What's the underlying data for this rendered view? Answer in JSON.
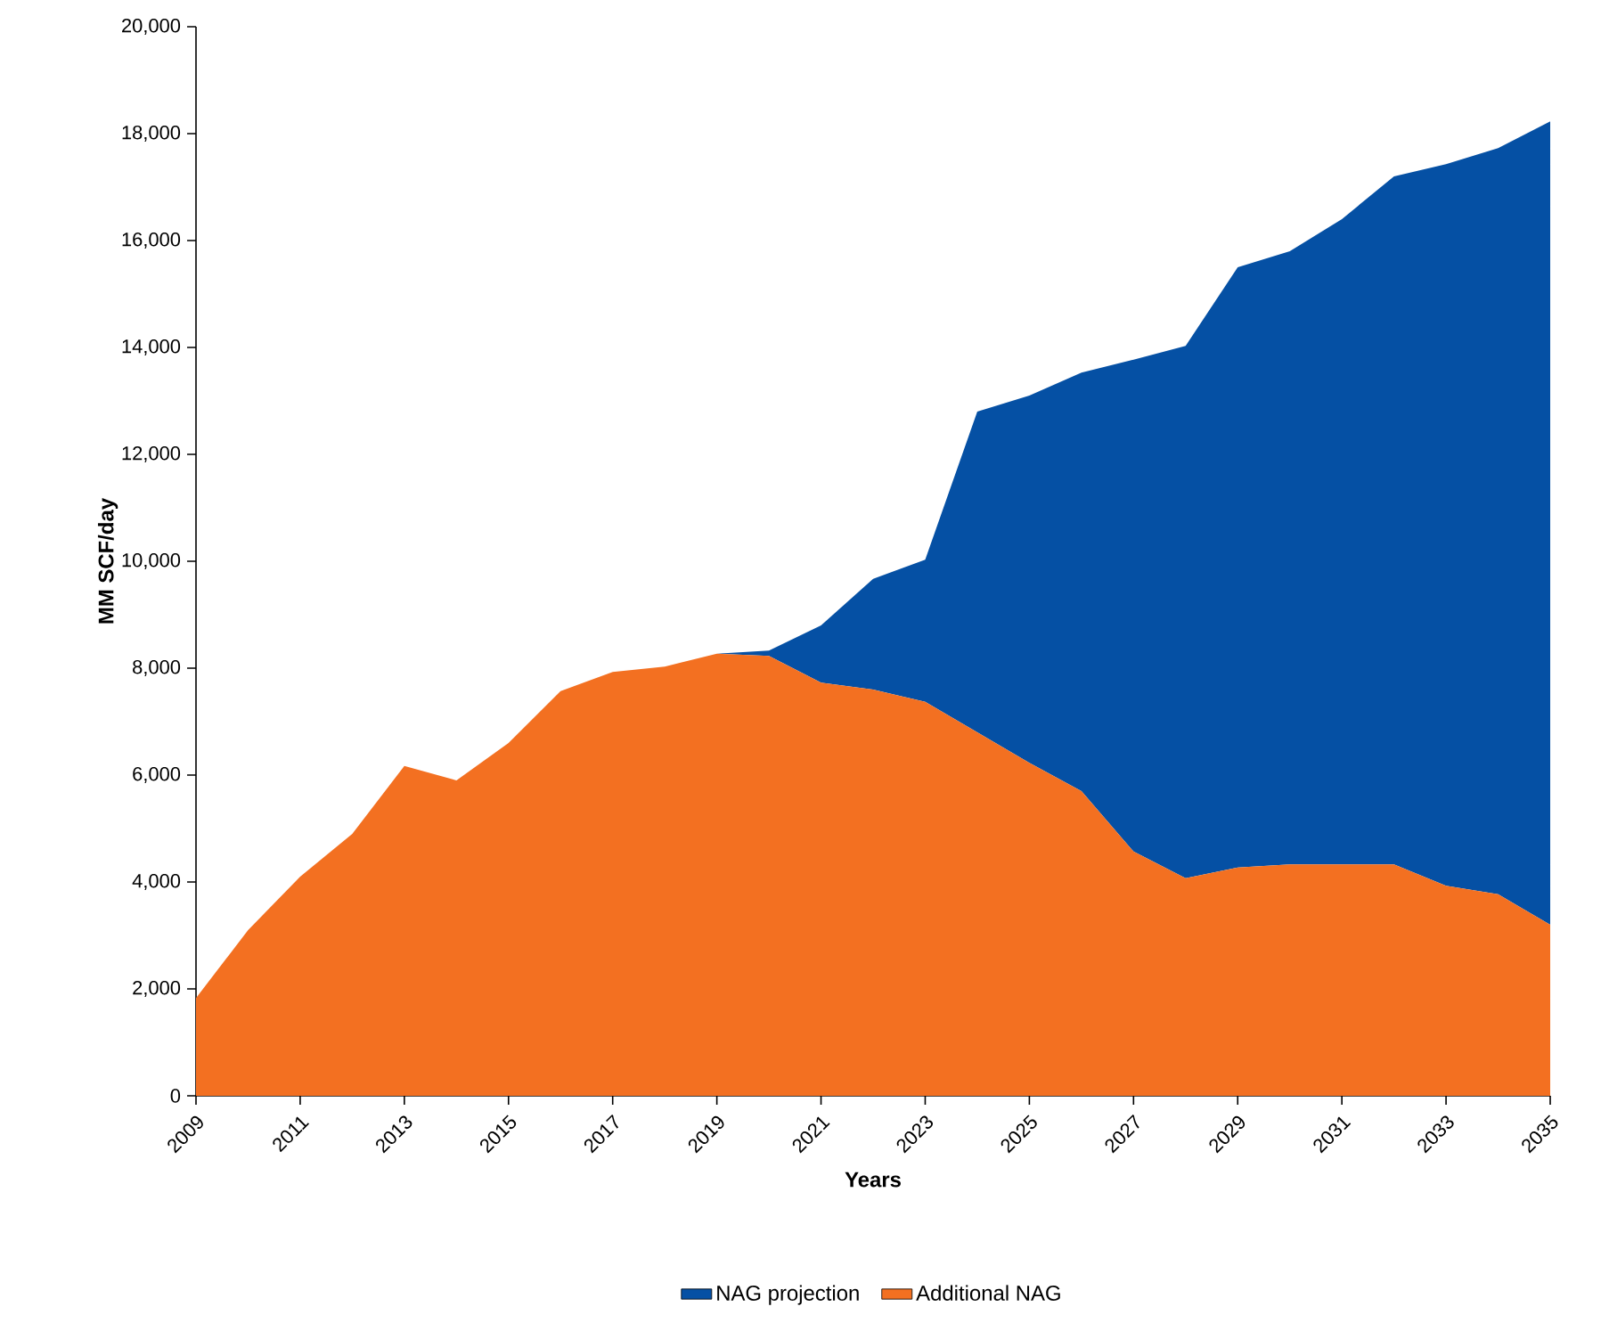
{
  "chart_data": {
    "type": "area",
    "stacked": true,
    "xlabel": "Years",
    "ylabel": "MM SCF/day",
    "x": [
      2009,
      2010,
      2011,
      2012,
      2013,
      2014,
      2015,
      2016,
      2017,
      2018,
      2019,
      2020,
      2021,
      2022,
      2023,
      2024,
      2025,
      2026,
      2027,
      2028,
      2029,
      2030,
      2031,
      2032,
      2033,
      2034,
      2035
    ],
    "series": [
      {
        "name": "Additional NAG",
        "color": "#f37021",
        "values": [
          1830,
          3100,
          4100,
          4900,
          6170,
          5900,
          6600,
          7570,
          7930,
          8030,
          8270,
          8230,
          7730,
          7600,
          7370,
          6800,
          6230,
          5700,
          4570,
          4070,
          4270,
          4330,
          4330,
          4330,
          3930,
          3770,
          3200
        ]
      },
      {
        "name": "NAG projection",
        "color": "#0550a4",
        "values": [
          0,
          0,
          0,
          0,
          0,
          0,
          0,
          0,
          0,
          0,
          0,
          100,
          1070,
          2070,
          2660,
          6000,
          6870,
          7830,
          9200,
          9960,
          11230,
          11470,
          12070,
          12870,
          13500,
          13960,
          15030
        ]
      }
    ],
    "xlim": [
      2009,
      2035
    ],
    "xticks": [
      2009,
      2011,
      2013,
      2015,
      2017,
      2019,
      2021,
      2023,
      2025,
      2027,
      2029,
      2031,
      2033,
      2035
    ],
    "ylim": [
      0,
      20000
    ],
    "yticks": [
      0,
      {
        "value": 2000,
        "label": "2,000"
      },
      {
        "value": 4000,
        "label": "4,000"
      },
      {
        "value": 6000,
        "label": "6,000"
      },
      {
        "value": 8000,
        "label": "8,000"
      },
      {
        "value": 10000,
        "label": "10,000"
      },
      {
        "value": 12000,
        "label": "12,000"
      },
      {
        "value": 14000,
        "label": "14,000"
      },
      {
        "value": 16000,
        "label": "16,000"
      },
      {
        "value": 18000,
        "label": "18,000"
      },
      {
        "value": 20000,
        "label": "20,000"
      }
    ],
    "legend": "bottom",
    "grid": false
  }
}
